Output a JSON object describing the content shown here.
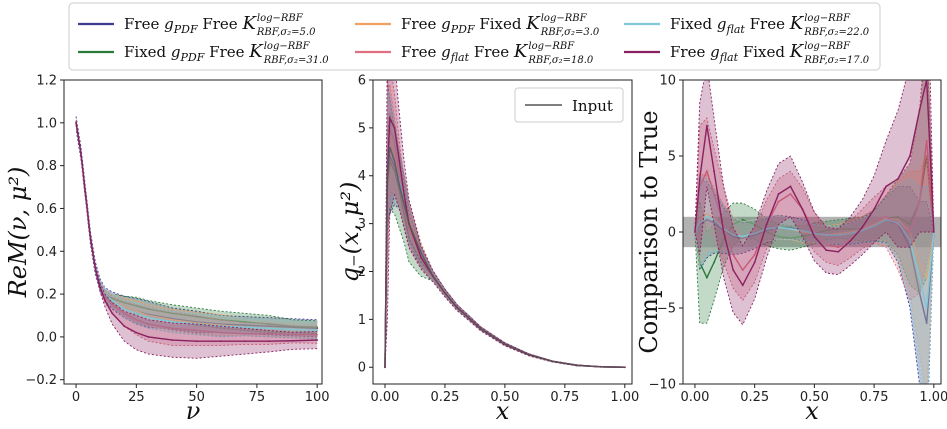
{
  "legend": {
    "entries": [
      {
        "color": "#3b3b8f",
        "a": "Free",
        "g": "g",
        "gsub": "PDF",
        "b": "Free",
        "ksup": "log−RBF",
        "ksub": "RBF,σ₂=5.0"
      },
      {
        "color": "#2a7a3a",
        "a": "Fixed",
        "g": "g",
        "gsub": "PDF",
        "b": "Free",
        "ksup": "log−RBF",
        "ksub": "RBF,σ₂=31.0"
      },
      {
        "color": "#f0a060",
        "a": "Free",
        "g": "g",
        "gsub": "PDF",
        "b": "Fixed",
        "ksup": "log−RBF",
        "ksub": "RBF,σ₂=3.0"
      },
      {
        "color": "#e07080",
        "a": "Free",
        "g": "g",
        "gsub": "flat",
        "b": "Free",
        "ksup": "log−RBF",
        "ksub": "RBF,σ₂=18.0"
      },
      {
        "color": "#7fc8d8",
        "a": "Fixed",
        "g": "g",
        "gsub": "flat",
        "b": "Free",
        "ksup": "log−RBF",
        "ksub": "RBF,σ₂=22.0"
      },
      {
        "color": "#8a2060",
        "a": "Free",
        "g": "g",
        "gsub": "flat",
        "b": "Fixed",
        "ksup": "log−RBF",
        "ksub": "RBF,σ₂=17.0"
      }
    ],
    "K": "K"
  },
  "chart_data": [
    {
      "type": "line",
      "panel": "left",
      "xlabel": "ν",
      "ylabel": "ReM(ν, μ²)",
      "xlim": [
        -5,
        102
      ],
      "ylim": [
        -0.22,
        1.2
      ],
      "xticks": [
        "0",
        "25",
        "50",
        "75",
        "100"
      ],
      "xtick_values": [
        0,
        25,
        50,
        75,
        100
      ],
      "yticks": [
        "−0.2",
        "0.0",
        "0.2",
        "0.4",
        "0.6",
        "0.8",
        "1.0",
        "1.2"
      ],
      "ytick_values": [
        -0.2,
        0.0,
        0.2,
        0.4,
        0.6,
        0.8,
        1.0,
        1.2
      ],
      "x": [
        0,
        2,
        4,
        6,
        8,
        10,
        12,
        15,
        20,
        25,
        30,
        40,
        50,
        60,
        70,
        80,
        90,
        100
      ],
      "series": [
        {
          "color": "#3b3b8f",
          "values": [
            1.0,
            0.86,
            0.66,
            0.46,
            0.32,
            0.24,
            0.2,
            0.17,
            0.14,
            0.12,
            0.105,
            0.085,
            0.07,
            0.06,
            0.055,
            0.05,
            0.045,
            0.04
          ],
          "band": [
            0.03,
            0.03,
            0.03,
            0.03,
            0.03,
            0.03,
            0.03,
            0.04,
            0.05,
            0.06,
            0.06,
            0.05,
            0.05,
            0.04,
            0.04,
            0.04,
            0.04,
            0.04
          ]
        },
        {
          "color": "#2a7a3a",
          "values": [
            1.0,
            0.86,
            0.66,
            0.46,
            0.32,
            0.24,
            0.2,
            0.18,
            0.16,
            0.145,
            0.13,
            0.11,
            0.095,
            0.08,
            0.07,
            0.06,
            0.05,
            0.045
          ],
          "band": [
            0.01,
            0.01,
            0.01,
            0.01,
            0.01,
            0.01,
            0.02,
            0.02,
            0.03,
            0.04,
            0.04,
            0.04,
            0.04,
            0.04,
            0.04,
            0.04,
            0.03,
            0.03
          ]
        },
        {
          "color": "#f0a060",
          "values": [
            1.0,
            0.86,
            0.66,
            0.46,
            0.32,
            0.24,
            0.2,
            0.17,
            0.14,
            0.12,
            0.1,
            0.08,
            0.065,
            0.055,
            0.045,
            0.04,
            0.035,
            0.03
          ],
          "band": [
            0.01,
            0.01,
            0.01,
            0.01,
            0.01,
            0.01,
            0.02,
            0.03,
            0.04,
            0.05,
            0.05,
            0.05,
            0.05,
            0.05,
            0.04,
            0.04,
            0.04,
            0.04
          ]
        },
        {
          "color": "#e07080",
          "values": [
            1.0,
            0.86,
            0.66,
            0.46,
            0.32,
            0.24,
            0.19,
            0.15,
            0.11,
            0.08,
            0.06,
            0.04,
            0.03,
            0.02,
            0.015,
            0.015,
            0.012,
            0.01
          ],
          "band": [
            0.01,
            0.01,
            0.01,
            0.01,
            0.01,
            0.02,
            0.03,
            0.04,
            0.06,
            0.07,
            0.08,
            0.08,
            0.07,
            0.06,
            0.05,
            0.05,
            0.04,
            0.04
          ]
        },
        {
          "color": "#7fc8d8",
          "values": [
            1.0,
            0.86,
            0.66,
            0.46,
            0.32,
            0.24,
            0.2,
            0.17,
            0.13,
            0.11,
            0.09,
            0.07,
            0.06,
            0.05,
            0.045,
            0.04,
            0.035,
            0.03
          ],
          "band": [
            0.01,
            0.01,
            0.01,
            0.01,
            0.01,
            0.02,
            0.03,
            0.03,
            0.04,
            0.05,
            0.05,
            0.05,
            0.05,
            0.05,
            0.04,
            0.04,
            0.04,
            0.04
          ]
        },
        {
          "color": "#8a2060",
          "values": [
            1.0,
            0.86,
            0.66,
            0.46,
            0.32,
            0.23,
            0.17,
            0.11,
            0.05,
            0.02,
            0.0,
            -0.015,
            -0.02,
            -0.02,
            -0.02,
            -0.02,
            -0.018,
            -0.015
          ],
          "band": [
            0.01,
            0.01,
            0.01,
            0.01,
            0.01,
            0.02,
            0.03,
            0.05,
            0.07,
            0.08,
            0.08,
            0.08,
            0.08,
            0.07,
            0.06,
            0.05,
            0.04,
            0.04
          ]
        }
      ]
    },
    {
      "type": "line",
      "panel": "middle",
      "xlabel": "x",
      "ylabel": "q₋(x, μ²)",
      "xlim": [
        -0.05,
        1.03
      ],
      "ylim": [
        -0.35,
        6
      ],
      "xticks": [
        "0.00",
        "0.25",
        "0.50",
        "0.75",
        "1.00"
      ],
      "xtick_values": [
        0,
        0.25,
        0.5,
        0.75,
        1.0
      ],
      "yticks": [
        "0",
        "1",
        "2",
        "3",
        "4",
        "5",
        "6"
      ],
      "ytick_values": [
        0,
        1,
        2,
        3,
        4,
        5,
        6
      ],
      "legend_label": "Input",
      "legend_position": "top-right",
      "x": [
        0,
        0.01,
        0.02,
        0.04,
        0.06,
        0.08,
        0.1,
        0.15,
        0.2,
        0.25,
        0.3,
        0.4,
        0.5,
        0.6,
        0.7,
        0.8,
        0.9,
        1.0
      ],
      "input": [
        0,
        4.0,
        4.6,
        4.3,
        3.8,
        3.4,
        3.0,
        2.4,
        1.9,
        1.55,
        1.25,
        0.8,
        0.48,
        0.26,
        0.12,
        0.04,
        0.01,
        0
      ],
      "series": [
        {
          "color": "#3b3b8f",
          "values": [
            0,
            4.5,
            4.4,
            4.2,
            3.9,
            3.5,
            3.0,
            2.3,
            1.9,
            1.55,
            1.25,
            0.8,
            0.48,
            0.26,
            0.12,
            0.04,
            0.01,
            0
          ],
          "band": [
            0,
            1.5,
            1.2,
            0.8,
            0.6,
            0.5,
            0.4,
            0.2,
            0.1,
            0.08,
            0.06,
            0.04,
            0.03,
            0.02,
            0.01,
            0.01,
            0,
            0
          ]
        },
        {
          "color": "#2a7a3a",
          "values": [
            0,
            3.8,
            4.3,
            4.1,
            3.7,
            3.2,
            2.7,
            2.2,
            1.9,
            1.55,
            1.25,
            0.8,
            0.48,
            0.26,
            0.12,
            0.04,
            0.01,
            0
          ],
          "band": [
            0,
            1.0,
            1.0,
            0.9,
            0.8,
            0.6,
            0.5,
            0.3,
            0.1,
            0.08,
            0.06,
            0.04,
            0.03,
            0.02,
            0.01,
            0.01,
            0,
            0
          ]
        },
        {
          "color": "#f0a060",
          "values": [
            0,
            4.6,
            4.8,
            4.4,
            3.9,
            3.5,
            3.1,
            2.4,
            1.9,
            1.55,
            1.25,
            0.8,
            0.48,
            0.26,
            0.12,
            0.04,
            0.01,
            0
          ],
          "band": [
            0,
            1.2,
            1.1,
            0.8,
            0.6,
            0.5,
            0.4,
            0.2,
            0.1,
            0.08,
            0.06,
            0.04,
            0.03,
            0.02,
            0.01,
            0.01,
            0,
            0
          ]
        },
        {
          "color": "#e07080",
          "values": [
            0,
            4.2,
            5.0,
            4.7,
            4.0,
            3.4,
            2.9,
            2.3,
            1.9,
            1.55,
            1.25,
            0.8,
            0.48,
            0.26,
            0.12,
            0.04,
            0.01,
            0
          ],
          "band": [
            0,
            2.0,
            1.4,
            1.0,
            0.7,
            0.5,
            0.4,
            0.2,
            0.1,
            0.08,
            0.06,
            0.04,
            0.03,
            0.02,
            0.01,
            0.01,
            0,
            0
          ]
        },
        {
          "color": "#7fc8d8",
          "values": [
            0,
            4.4,
            4.6,
            4.3,
            3.9,
            3.5,
            3.0,
            2.35,
            1.9,
            1.55,
            1.25,
            0.8,
            0.48,
            0.26,
            0.12,
            0.04,
            0.01,
            0
          ],
          "band": [
            0,
            1.4,
            1.1,
            0.8,
            0.6,
            0.5,
            0.4,
            0.2,
            0.1,
            0.08,
            0.06,
            0.04,
            0.03,
            0.02,
            0.01,
            0.01,
            0,
            0
          ]
        },
        {
          "color": "#8a2060",
          "values": [
            0,
            4.0,
            5.2,
            5.0,
            4.3,
            3.6,
            3.0,
            2.3,
            1.9,
            1.55,
            1.25,
            0.8,
            0.48,
            0.26,
            0.12,
            0.04,
            0.01,
            0
          ],
          "band": [
            0,
            3.0,
            2.0,
            1.4,
            1.0,
            0.7,
            0.5,
            0.25,
            0.12,
            0.08,
            0.06,
            0.04,
            0.03,
            0.02,
            0.01,
            0.01,
            0,
            0
          ]
        }
      ]
    },
    {
      "type": "line",
      "panel": "right",
      "xlabel": "x",
      "ylabel": "Comparison to True",
      "xlim": [
        -0.05,
        1.03
      ],
      "ylim": [
        -10,
        10
      ],
      "xticks": [
        "0.00",
        "0.25",
        "0.50",
        "0.75",
        "1.00"
      ],
      "xtick_values": [
        0,
        0.25,
        0.5,
        0.75,
        1.0
      ],
      "yticks": [
        "−10",
        "−5",
        "0",
        "5",
        "10"
      ],
      "ytick_values": [
        -10,
        -5,
        0,
        5,
        10
      ],
      "reference_band": [
        -1,
        1
      ],
      "x": [
        0,
        0.02,
        0.05,
        0.08,
        0.12,
        0.16,
        0.2,
        0.25,
        0.3,
        0.35,
        0.4,
        0.45,
        0.5,
        0.55,
        0.6,
        0.65,
        0.7,
        0.75,
        0.8,
        0.85,
        0.9,
        0.94,
        0.97,
        1.0
      ],
      "series": [
        {
          "color": "#3b3b8f",
          "values": [
            0,
            0.5,
            0.8,
            0.6,
            0.1,
            -0.3,
            -0.4,
            -0.2,
            0.1,
            0.3,
            0.3,
            0.1,
            -0.1,
            -0.2,
            -0.2,
            -0.1,
            0.1,
            0.4,
            0.8,
            0.5,
            -1.0,
            -4.0,
            -6.0,
            0
          ],
          "band": [
            0,
            3,
            2.5,
            2,
            1.5,
            1.2,
            1.0,
            0.9,
            0.8,
            0.8,
            0.7,
            0.7,
            0.6,
            0.6,
            0.6,
            0.7,
            0.8,
            1.0,
            1.5,
            2.5,
            4,
            6,
            8,
            0
          ]
        },
        {
          "color": "#2a7a3a",
          "values": [
            0,
            -2.0,
            -3.0,
            -2.0,
            -0.5,
            0.5,
            0.8,
            0.5,
            0.0,
            -0.3,
            -0.4,
            -0.3,
            -0.1,
            0.1,
            0.2,
            0.2,
            0.2,
            0.4,
            0.9,
            1.0,
            0.5,
            2.0,
            5.0,
            0
          ],
          "band": [
            0,
            4,
            3,
            2.5,
            1.8,
            1.4,
            1.1,
            1.0,
            0.9,
            0.8,
            0.8,
            0.7,
            0.7,
            0.6,
            0.6,
            0.7,
            0.8,
            1.0,
            1.5,
            2.5,
            4,
            6,
            8,
            0
          ]
        },
        {
          "color": "#f0a060",
          "values": [
            0,
            0.8,
            1.2,
            0.9,
            0.3,
            -0.2,
            -0.3,
            -0.1,
            0.2,
            0.3,
            0.2,
            0.0,
            -0.1,
            -0.2,
            -0.1,
            0.0,
            0.2,
            0.5,
            0.9,
            0.8,
            0.0,
            -2.0,
            -3.0,
            0
          ],
          "band": [
            0,
            3,
            2.5,
            2,
            1.5,
            1.2,
            1.0,
            0.9,
            0.8,
            0.8,
            0.7,
            0.7,
            0.6,
            0.6,
            0.6,
            0.7,
            0.8,
            1.0,
            1.5,
            2.5,
            4,
            6,
            8,
            0
          ]
        },
        {
          "color": "#e07080",
          "values": [
            0,
            3.0,
            4.0,
            2.5,
            0.5,
            -1.5,
            -2.5,
            -1.5,
            0.5,
            2.0,
            2.5,
            1.5,
            0.0,
            -0.8,
            -1.0,
            -0.5,
            0.2,
            0.8,
            1.0,
            0.5,
            0.0,
            2.0,
            6.0,
            0
          ],
          "band": [
            0,
            4,
            3.5,
            3,
            2.5,
            2.2,
            2.0,
            1.8,
            1.6,
            1.5,
            1.5,
            1.4,
            1.3,
            1.2,
            1.2,
            1.2,
            1.3,
            1.5,
            2.0,
            3.0,
            4.5,
            6,
            8,
            0
          ]
        },
        {
          "color": "#7fc8d8",
          "values": [
            0,
            0.6,
            1.0,
            0.8,
            0.2,
            -0.2,
            -0.3,
            -0.1,
            0.2,
            0.3,
            0.2,
            0.1,
            -0.1,
            -0.2,
            -0.2,
            -0.1,
            0.1,
            0.4,
            0.8,
            0.6,
            -0.5,
            -3.0,
            -5.0,
            0
          ],
          "band": [
            0,
            3,
            2.5,
            2,
            1.5,
            1.2,
            1.0,
            0.9,
            0.8,
            0.8,
            0.7,
            0.7,
            0.6,
            0.6,
            0.6,
            0.7,
            0.8,
            1.0,
            1.5,
            2.5,
            4,
            6,
            8,
            0
          ]
        },
        {
          "color": "#8a2060",
          "values": [
            0,
            3.5,
            7.0,
            4.0,
            0.0,
            -2.5,
            -3.5,
            -2.0,
            0.5,
            2.5,
            3.0,
            1.5,
            -0.3,
            -1.2,
            -1.3,
            -0.6,
            0.3,
            1.5,
            3.0,
            3.5,
            5.0,
            8.0,
            10.0,
            0
          ],
          "band": [
            0,
            5,
            4,
            3.5,
            3.0,
            2.8,
            2.6,
            2.4,
            2.2,
            2.0,
            2.0,
            1.8,
            1.6,
            1.5,
            1.5,
            1.6,
            1.8,
            2.2,
            3.0,
            4.5,
            6,
            8,
            10,
            0
          ]
        }
      ]
    }
  ]
}
